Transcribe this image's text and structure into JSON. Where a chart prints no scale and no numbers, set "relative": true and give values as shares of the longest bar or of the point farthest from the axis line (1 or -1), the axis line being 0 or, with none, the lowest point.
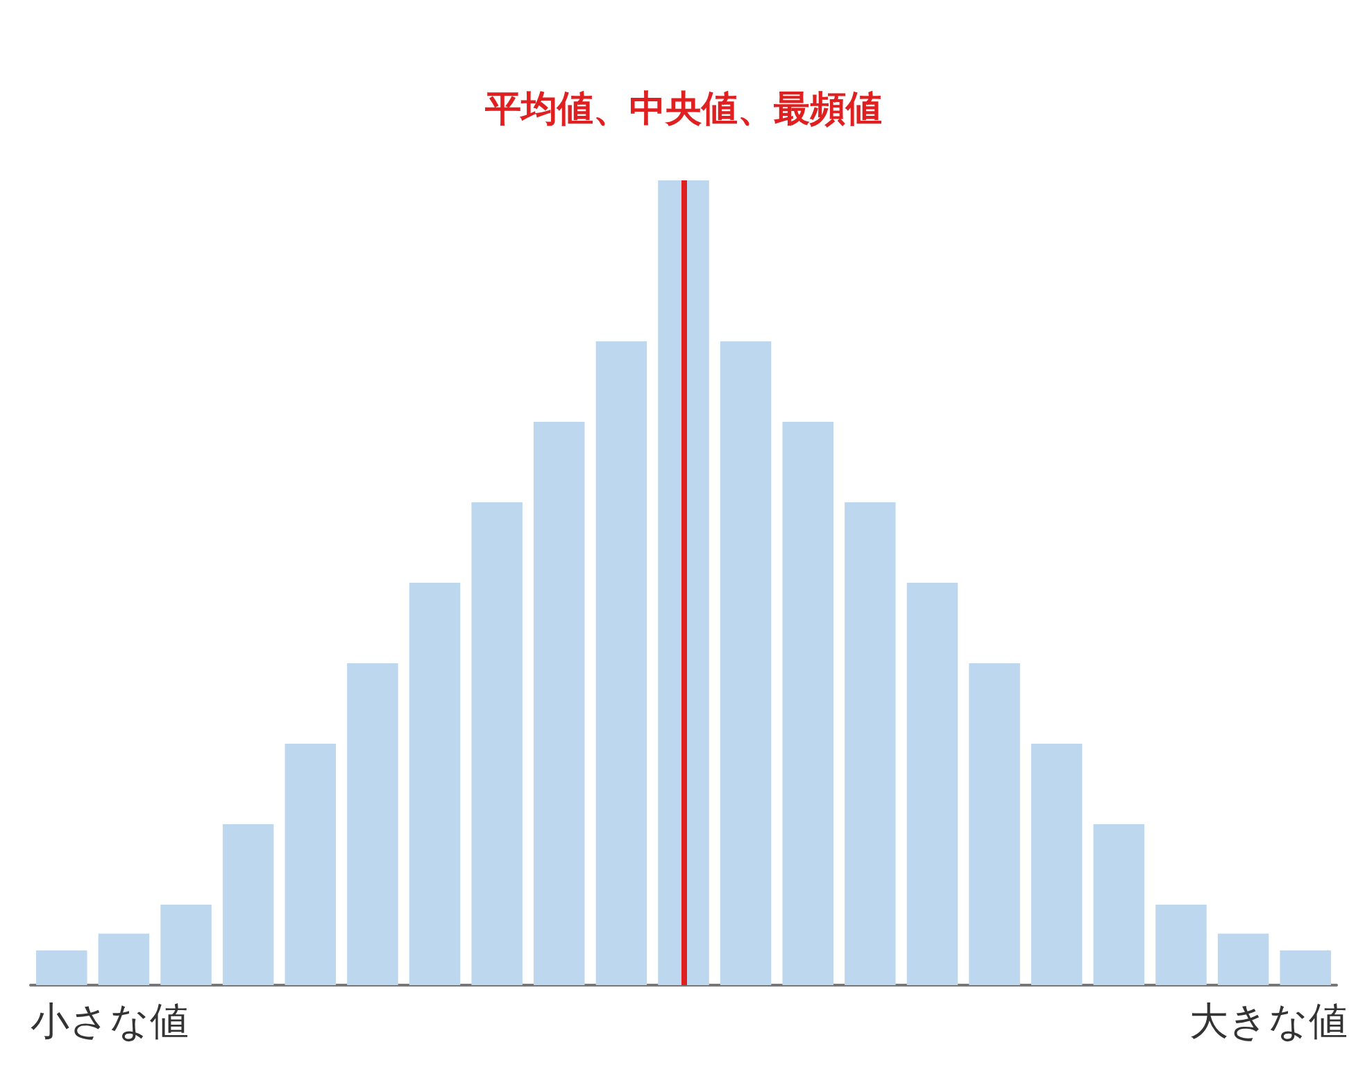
{
  "chart_data": {
    "type": "bar",
    "relative": true,
    "categories": [
      null,
      null,
      null,
      null,
      null,
      null,
      null,
      null,
      null,
      null,
      null,
      null,
      null,
      null,
      null,
      null,
      null,
      null,
      null,
      null,
      null
    ],
    "values": [
      0.043,
      0.064,
      0.1,
      0.2,
      0.3,
      0.4,
      0.5,
      0.6,
      0.7,
      0.8,
      1,
      0.8,
      0.7,
      0.6,
      0.5,
      0.4,
      0.3,
      0.2,
      0.1,
      0.064,
      0.043
    ],
    "color": "#bdd7ee",
    "annotations": [
      "平均値、中央値、最頻値",
      "小さな値",
      "大きな値"
    ],
    "grid": false
  }
}
